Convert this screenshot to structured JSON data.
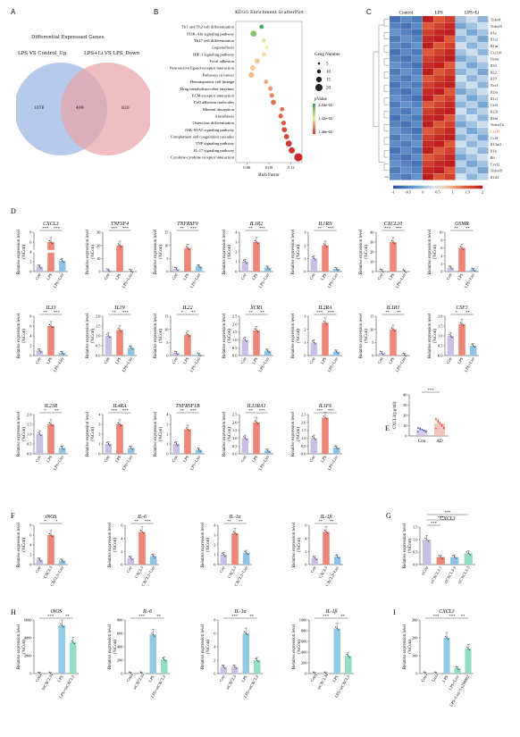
{
  "panels": {
    "A": {
      "letter": "A",
      "title": "Differential Expressed Genes",
      "set_left": "LPS VS Control_Up",
      "set_right": "LPS+Li VS LPS_Down",
      "left_only": "1076",
      "overlap": "499",
      "right_only": "820",
      "colors": {
        "left": "#9DB8E4",
        "right": "#E9A3A6"
      }
    },
    "B": {
      "letter": "B",
      "title": "KEGG Enrichment ScatterPlot",
      "xlabel": "Rich Factor",
      "xticks": [
        "0.06",
        "0.09",
        "0.12"
      ],
      "size_legend_title": "Geng Number",
      "size_legend_values": [
        "5",
        "10",
        "15",
        "20"
      ],
      "color_legend_title": "pValue",
      "color_legend_values": [
        "2.84e-02",
        "1.42e-02",
        "1.46e-02"
      ],
      "pathways": [
        "Th1 and Th2 cell differentiation",
        "PI3K-Akt signaling pathway",
        "Th17 cell differentiation",
        "Legionellosis",
        "HIF-1 signaling pathway",
        "Focal adhesion",
        "Neuroactive ligand-receptor interaction",
        "Pathways in cancer",
        "Hematopoietic cell lineage",
        "Drug metabolism-other enzymes",
        "ECM-receptor interaction",
        "Cell adhesion molecules",
        "Mineral absorption",
        "Amoebiasis",
        "Osteoclast differentiation",
        "JAK-STAT signaling pathway",
        "Complement and coagulation cascades",
        "TNF signaling pathway",
        "IL-17 signaling pathway",
        "Cytokine-cytokine receptor interaction"
      ]
    },
    "C": {
      "letter": "C",
      "groups": [
        "Control",
        "LPS",
        "LPS+Li"
      ],
      "genes": [
        "Tnfsf4",
        "Tnfrsf9",
        "Il1a",
        "Il1r2",
        "Il1rn",
        "Cxcl10",
        "Osmr",
        "Il33",
        "Il22",
        "Il19",
        "Xcr1",
        "Il2ra",
        "Il1r1",
        "Csf3",
        "Il23r",
        "Il4ra",
        "Tnfrsf1b",
        "Ccl3",
        "Il13ra1",
        "Il1b",
        "Il6",
        "Cxcl2",
        "Tnfrsf8",
        "Il1rl2"
      ],
      "highlight_gene": "Cxcl3",
      "scale_ticks": [
        "-1",
        "-0.5",
        "0",
        "0.5",
        "1",
        "1.5",
        "2"
      ]
    },
    "D": {
      "letter": "D",
      "ylabel": "Relative expression level\n(%Con)",
      "groups": [
        "Con",
        "LPS",
        "LPS+Lira"
      ],
      "genes": [
        {
          "name": "CXCL3",
          "values": [
            1,
            6,
            2.2
          ],
          "sig": [
            "***",
            "***"
          ]
        },
        {
          "name": "TNFSF4",
          "values": [
            1,
            20,
            0.5
          ],
          "sig": [
            "***",
            "***"
          ]
        },
        {
          "name": "TNFRSF9",
          "values": [
            1,
            9,
            2
          ],
          "sig": [
            "**",
            "***"
          ]
        },
        {
          "name": "IL1R2",
          "values": [
            1,
            3,
            0.4
          ],
          "sig": [
            "**",
            "***"
          ]
        },
        {
          "name": "IL1RN",
          "values": [
            1,
            2,
            0.2
          ],
          "sig": [
            "**",
            "***"
          ]
        },
        {
          "name": "CXCL10",
          "values": [
            1,
            30,
            0.5
          ],
          "sig": [
            "***",
            "***"
          ]
        },
        {
          "name": "OSMR",
          "values": [
            1,
            6,
            0.5
          ],
          "sig": [
            "**",
            "**"
          ]
        },
        {
          "name": "IL33",
          "values": [
            1,
            6,
            0.5
          ],
          "sig": [
            "**",
            "***"
          ]
        },
        {
          "name": "IL19",
          "values": [
            1,
            1.3,
            0.4
          ],
          "sig": [
            "**",
            "***"
          ]
        },
        {
          "name": "IL22",
          "values": [
            1,
            8,
            0.4
          ],
          "sig": [
            "*",
            "**"
          ]
        },
        {
          "name": "XCR1",
          "values": [
            1,
            1.6,
            0.3
          ],
          "sig": [
            "**",
            "**"
          ]
        },
        {
          "name": "IL2RA",
          "values": [
            1,
            2.5,
            0.3
          ],
          "sig": [
            "***",
            "***"
          ]
        },
        {
          "name": "IL1R1",
          "values": [
            1,
            10,
            0.3
          ],
          "sig": [
            "**",
            "**"
          ]
        },
        {
          "name": "CSF3",
          "values": [
            1,
            1.6,
            0.5
          ],
          "sig": [
            "*",
            "**"
          ]
        },
        {
          "name": "IL23R",
          "values": [
            1,
            1.5,
            0.3
          ],
          "sig": [
            "*",
            "**"
          ]
        },
        {
          "name": "IL4RA",
          "values": [
            1,
            3,
            0.6
          ],
          "sig": [
            "***",
            "***"
          ]
        },
        {
          "name": "TNFRSF1B",
          "values": [
            1,
            2.5,
            0.4
          ],
          "sig": [
            "**",
            "***"
          ]
        },
        {
          "name": "IL13RA1",
          "values": [
            1,
            2,
            0.2
          ],
          "sig": [
            "**",
            "***"
          ]
        },
        {
          "name": "IL1F6",
          "values": [
            1,
            2.3,
            0.4
          ],
          "sig": [
            "***",
            "***"
          ]
        }
      ]
    },
    "E": {
      "letter": "E",
      "ylabel": "CXCL3(pg/ml)",
      "groups": [
        "Con",
        "AD"
      ],
      "values": [
        6,
        12
      ],
      "sig": "***"
    },
    "F": {
      "letter": "F",
      "ylabel": "Relative expression level\n(%Con)",
      "groups": [
        "Con",
        "CXCL3",
        "CXCL3+Lira"
      ],
      "genes": [
        {
          "name": "iNOS",
          "values": [
            1,
            6,
            0.8
          ],
          "sig": [
            "*",
            "*"
          ]
        },
        {
          "name": "IL-6",
          "values": [
            1,
            5,
            1.3
          ],
          "sig": [
            "**",
            "***"
          ]
        },
        {
          "name": "IL-1α",
          "values": [
            1,
            3.2,
            1.2
          ],
          "sig": [
            "**",
            "**"
          ]
        },
        {
          "name": "IL-1β",
          "values": [
            1,
            5,
            1.2
          ],
          "sig": [
            "**",
            "**"
          ]
        }
      ]
    },
    "G": {
      "letter": "G",
      "ylabel": "Relative expression level\n(%Con)",
      "gene": "CXCL3",
      "groups": [
        "siCon",
        "siCXCL3-1",
        "siCXCL3-2",
        "siCXCL3-3"
      ],
      "values": [
        1,
        0.3,
        0.3,
        0.45
      ],
      "sig": [
        "***",
        "***",
        "***"
      ]
    },
    "H": {
      "letter": "H",
      "ylabel": "Relative expression level\n(%Con)",
      "genes": [
        {
          "name": "iNOS",
          "groups": [
            "Con",
            "SiCXCL3",
            "LPS",
            "LPS+SiCXCL3"
          ],
          "values": [
            1,
            1,
            5400,
            3500
          ],
          "yticks": [
            "0",
            "2000",
            "4000",
            "6000"
          ],
          "sig": [
            "***",
            "**"
          ]
        },
        {
          "name": "IL-6",
          "groups": [
            "Con",
            "siCXCL3",
            "LPS",
            "LPS+siCXCL3"
          ],
          "values": [
            1,
            1,
            580,
            210
          ],
          "yticks": [
            "0",
            "200",
            "400",
            "600",
            "800"
          ],
          "sig": [
            "***",
            "**"
          ]
        },
        {
          "name": "IL-1α",
          "groups": [
            "Con",
            "siCXCL3",
            "LPS",
            "LPS+siCXCL3"
          ],
          "values": [
            1,
            1,
            6,
            2
          ],
          "yticks": [
            "0",
            "2",
            "4",
            "6",
            "8"
          ],
          "sig": [
            "***",
            "**"
          ]
        },
        {
          "name": "IL-1β",
          "groups": [
            "Con",
            "siCXCL3",
            "LPS",
            "LPS+siCXCL3"
          ],
          "values": [
            1,
            1,
            840,
            330
          ],
          "yticks": [
            "0",
            "200",
            "400",
            "600",
            "800",
            "1000"
          ],
          "sig": [
            "***",
            "**"
          ]
        }
      ]
    },
    "I": {
      "letter": "I",
      "ylabel": "Relative expression level\n(%Con)",
      "gene": "CXCL3",
      "groups": [
        "Con",
        "Lira",
        "LPS",
        "LPS+Lira",
        "LPS+Lira+Ly294002"
      ],
      "values": [
        1,
        1,
        200,
        30,
        140
      ],
      "yticks": [
        "0",
        "100",
        "200",
        "300"
      ],
      "sig": [
        "***",
        "***",
        "**"
      ]
    }
  },
  "colors": {
    "con": "#C9BEE3",
    "lps": "#EE8677",
    "lira": "#8FC3E4",
    "lps_h": "#90CBE6",
    "green_h": "#93DDC5"
  }
}
